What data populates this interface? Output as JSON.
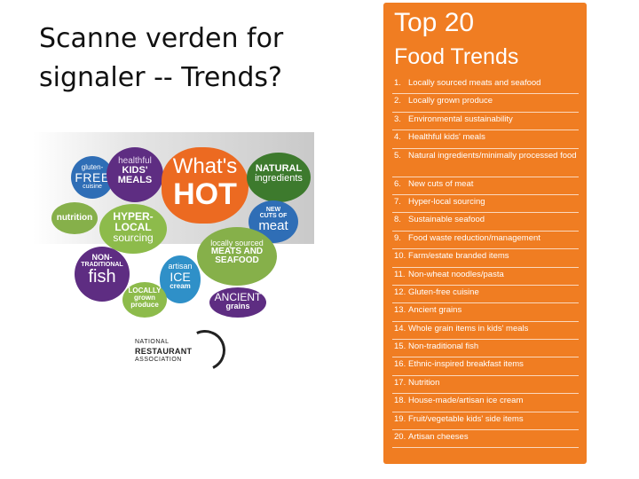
{
  "slide": {
    "title_line1": "Scanne verden for",
    "title_line2": "signaler  --  Trends?"
  },
  "collage": {
    "gluten": [
      "gluten-",
      "FREE",
      "cuisine"
    ],
    "healthful": [
      "healthful",
      "KIDS'",
      "MEALS"
    ],
    "hot": [
      "What's",
      "HOT"
    ],
    "natural": [
      "NATURAL",
      "ingredients"
    ],
    "nutrition": "nutrition",
    "hyper": [
      "HYPER-",
      "LOCAL",
      "sourcing"
    ],
    "cuts": [
      "NEW",
      "CUTS OF",
      "meat"
    ],
    "local_meats": [
      "locally sourced",
      "MEATS AND",
      "SEAFOOD"
    ],
    "nontrad": [
      "NON-",
      "TRADITIONAL",
      "fish"
    ],
    "artisan": [
      "artisan",
      "ICE",
      "cream"
    ],
    "locally": [
      "LOCALLY",
      "grown",
      "produce"
    ],
    "ancient": [
      "ANCIENT",
      "grains"
    ],
    "logo": [
      "NATIONAL",
      "RESTAURANT",
      "ASSOCIATION"
    ]
  },
  "panel": {
    "title": "Top 20",
    "subtitle": "Food Trends",
    "items": [
      {
        "num": "1.",
        "text": "Locally sourced meats and seafood"
      },
      {
        "num": "2.",
        "text": "Locally grown produce"
      },
      {
        "num": "3.",
        "text": "Environmental sustainability"
      },
      {
        "num": "4.",
        "text": "Healthful kids' meals"
      },
      {
        "num": "5.",
        "text": "Natural ingredients/minimally processed food"
      },
      {
        "num": "6.",
        "text": "New cuts of meat"
      },
      {
        "num": "7.",
        "text": "Hyper-local sourcing"
      },
      {
        "num": "8.",
        "text": "Sustainable seafood"
      },
      {
        "num": "9.",
        "text": "Food waste reduction/management"
      },
      {
        "num": "10.",
        "text": "Farm/estate branded items"
      },
      {
        "num": "11.",
        "text": "Non-wheat noodles/pasta"
      },
      {
        "num": "12.",
        "text": "Gluten-free cuisine"
      },
      {
        "num": "13.",
        "text": "Ancient grains"
      },
      {
        "num": "14.",
        "text": "Whole grain items in kids' meals"
      },
      {
        "num": "15.",
        "text": "Non-traditional fish"
      },
      {
        "num": "16.",
        "text": "Ethnic-inspired breakfast items"
      },
      {
        "num": "17.",
        "text": "Nutrition"
      },
      {
        "num": "18.",
        "text": "House-made/artisan ice cream"
      },
      {
        "num": "19.",
        "text": "Fruit/vegetable kids' side items"
      },
      {
        "num": "20.",
        "text": "Artisan cheeses"
      }
    ]
  },
  "colors": {
    "orange": "#f07d22",
    "blue": "#2f6eb6",
    "purple": "#5e2d82",
    "green": "#86b04a",
    "dark_green": "#3d7a2d"
  }
}
